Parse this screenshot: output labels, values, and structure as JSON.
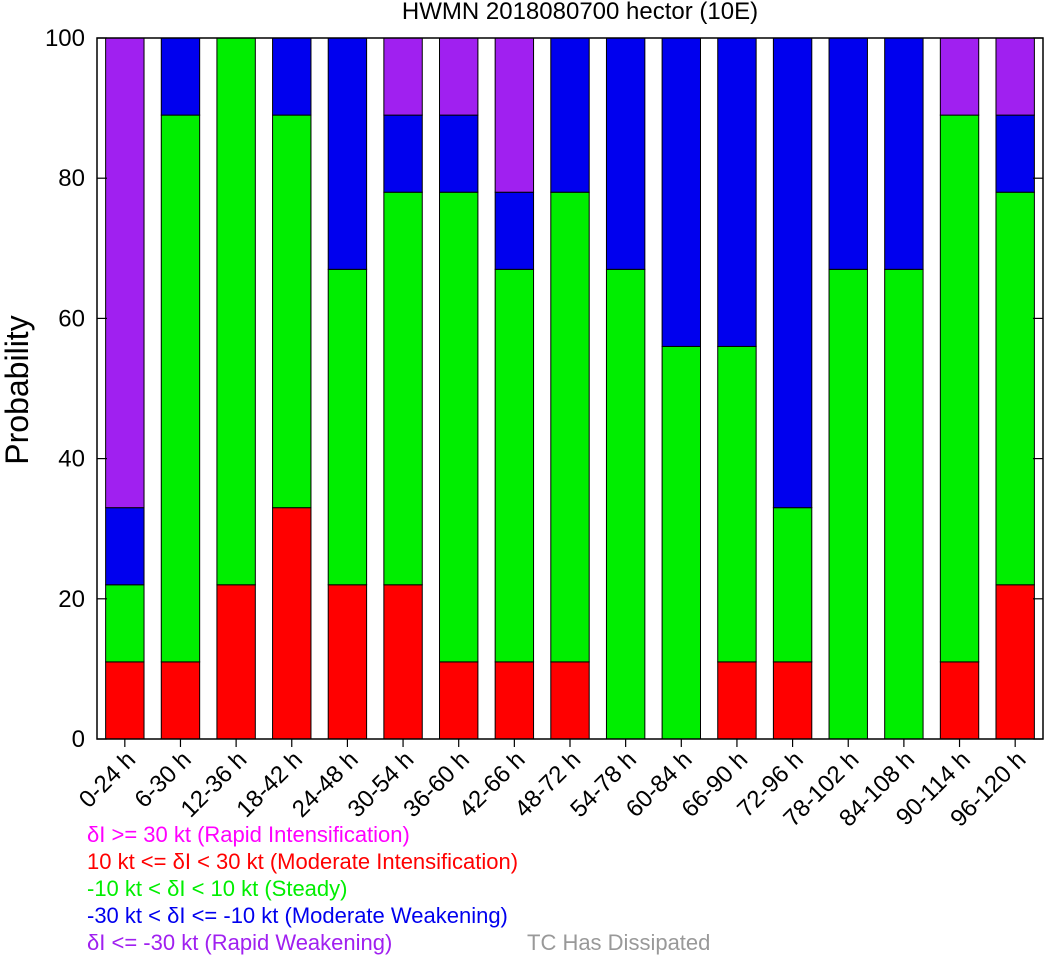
{
  "chart_data": {
    "type": "bar",
    "stacked": true,
    "title": "HWMN 2018080700 hector (10E)",
    "xlabel": "",
    "ylabel": "Probability",
    "ylim": [
      0,
      100
    ],
    "yticks": [
      0,
      20,
      40,
      60,
      80,
      100
    ],
    "grid": false,
    "categories": [
      "0-24 h",
      "6-30 h",
      "12-36 h",
      "18-42 h",
      "24-48 h",
      "30-54 h",
      "36-60 h",
      "42-66 h",
      "48-72 h",
      "54-78 h",
      "60-84 h",
      "66-90 h",
      "72-96 h",
      "78-102 h",
      "84-108 h",
      "90-114 h",
      "96-120 h"
    ],
    "series": [
      {
        "color": "#ff00ff",
        "values": [
          0,
          0,
          0,
          0,
          0,
          0,
          0,
          0,
          0,
          0,
          0,
          0,
          0,
          0,
          0,
          0,
          0
        ]
      },
      {
        "color": "#ff0000",
        "values": [
          11,
          11,
          22,
          33,
          22,
          22,
          11,
          11,
          11,
          0,
          0,
          11,
          11,
          0,
          0,
          11,
          22
        ]
      },
      {
        "color": "#00ee00",
        "values": [
          11,
          78,
          78,
          56,
          45,
          56,
          67,
          56,
          67,
          67,
          56,
          45,
          22,
          67,
          67,
          78,
          56
        ]
      },
      {
        "color": "#0000ee",
        "values": [
          11,
          11,
          0,
          11,
          33,
          11,
          11,
          11,
          22,
          33,
          44,
          44,
          67,
          33,
          33,
          0,
          11
        ]
      },
      {
        "color": "#a020f0",
        "values": [
          67,
          0,
          0,
          0,
          0,
          11,
          11,
          22,
          0,
          0,
          0,
          0,
          0,
          0,
          0,
          11,
          11
        ]
      },
      {
        "color": "#999999",
        "values": [
          0,
          0,
          0,
          0,
          0,
          0,
          0,
          0,
          0,
          0,
          0,
          0,
          0,
          0,
          0,
          0,
          0
        ]
      }
    ],
    "legend": {
      "placement": "bottom-left",
      "entries": [
        {
          "text": "δI >= 30 kt (Rapid Intensification)",
          "color": "#ff00ff"
        },
        {
          "text": "10 kt <= δI < 30 kt (Moderate Intensification)",
          "color": "#ff0000"
        },
        {
          "text": "-10 kt < δI < 10 kt (Steady)",
          "color": "#00ee00"
        },
        {
          "text": "-30 kt < δI <= -10 kt (Moderate Weakening)",
          "color": "#0000ee"
        },
        {
          "text": "δI <= -30 kt (Rapid Weakening)",
          "color": "#a020f0"
        },
        {
          "text": "TC Has Dissipated",
          "color": "#999999"
        }
      ]
    }
  }
}
